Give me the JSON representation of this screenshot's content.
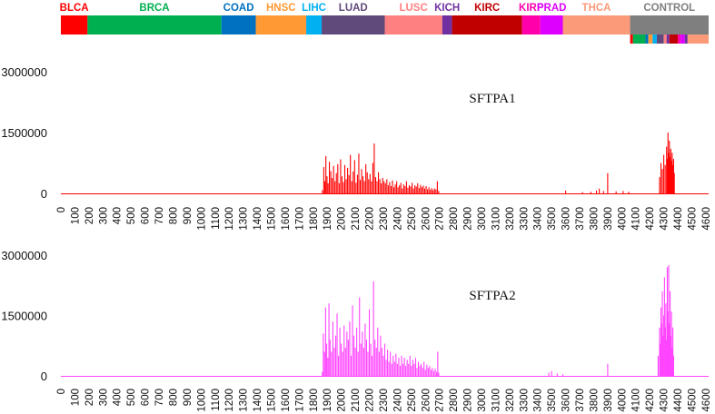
{
  "chart_data": {
    "cancer_bar": {
      "segments": [
        {
          "name": "BLCA",
          "start": 0,
          "end": 190,
          "color": "#ff0000"
        },
        {
          "name": "BRCA",
          "start": 190,
          "end": 1145,
          "color": "#00b050"
        },
        {
          "name": "COAD",
          "start": 1145,
          "end": 1390,
          "color": "#0070c0"
        },
        {
          "name": "HNSC",
          "start": 1390,
          "end": 1750,
          "color": "#ff9933"
        },
        {
          "name": "LIHC",
          "start": 1750,
          "end": 1860,
          "color": "#00b0f0"
        },
        {
          "name": "LUAD",
          "start": 1860,
          "end": 2310,
          "color": "#604a7b"
        },
        {
          "name": "LUSC",
          "start": 2310,
          "end": 2720,
          "color": "#ff8080"
        },
        {
          "name": "KICH",
          "start": 2720,
          "end": 2790,
          "color": "#7030a0"
        },
        {
          "name": "KIRC",
          "start": 2790,
          "end": 3290,
          "color": "#c00000"
        },
        {
          "name": "KIRP",
          "start": 3290,
          "end": 3420,
          "color": "#ff00aa"
        },
        {
          "name": "PRAD",
          "start": 3420,
          "end": 3580,
          "color": "#dd00ff"
        },
        {
          "name": "THCA",
          "start": 3580,
          "end": 4060,
          "color": "#fa9a78"
        },
        {
          "name": "CONTROL",
          "start": 4060,
          "end": 4620,
          "color": "#7f7f7f"
        }
      ],
      "control_subsegments": [
        {
          "start": 4060,
          "end": 4080,
          "color": "#ff0000"
        },
        {
          "start": 4080,
          "end": 4170,
          "color": "#00b050"
        },
        {
          "start": 4170,
          "end": 4190,
          "color": "#0070c0"
        },
        {
          "start": 4190,
          "end": 4220,
          "color": "#ff9933"
        },
        {
          "start": 4220,
          "end": 4250,
          "color": "#00b0f0"
        },
        {
          "start": 4250,
          "end": 4300,
          "color": "#604a7b"
        },
        {
          "start": 4300,
          "end": 4320,
          "color": "#ff8080"
        },
        {
          "start": 4320,
          "end": 4340,
          "color": "#7030a0"
        },
        {
          "start": 4340,
          "end": 4400,
          "color": "#c00000"
        },
        {
          "start": 4400,
          "end": 4420,
          "color": "#ff00aa"
        },
        {
          "start": 4420,
          "end": 4450,
          "color": "#dd00ff"
        },
        {
          "start": 4450,
          "end": 4470,
          "color": "#7030a0"
        },
        {
          "start": 4470,
          "end": 4620,
          "color": "#fa9a78"
        }
      ]
    },
    "panels": [
      {
        "type": "bar",
        "title": "SFTPA1",
        "color": "#ff0000",
        "ylim": [
          0,
          3000000
        ],
        "yticks": [
          "3000000",
          "1500000",
          "0"
        ],
        "ytick_values": [
          3000000,
          1500000,
          0
        ],
        "xlim": [
          0,
          4620
        ],
        "xticks": [
          0,
          100,
          200,
          300,
          400,
          500,
          600,
          700,
          800,
          900,
          1000,
          1100,
          1200,
          1300,
          1400,
          1500,
          1600,
          1700,
          1800,
          1900,
          2000,
          2100,
          2200,
          2300,
          2400,
          2500,
          2600,
          2700,
          2800,
          2900,
          3000,
          3100,
          3200,
          3300,
          3400,
          3500,
          3600,
          3700,
          3800,
          3900,
          4000,
          4100,
          4200,
          4300,
          4400,
          4500,
          4600
        ],
        "spikes": [
          [
            1865,
            80000
          ],
          [
            1875,
            650000
          ],
          [
            1883,
            300000
          ],
          [
            1890,
            920000
          ],
          [
            1898,
            420000
          ],
          [
            1906,
            250000
          ],
          [
            1915,
            780000
          ],
          [
            1925,
            550000
          ],
          [
            1935,
            380000
          ],
          [
            1945,
            680000
          ],
          [
            1955,
            300000
          ],
          [
            1965,
            500000
          ],
          [
            1975,
            720000
          ],
          [
            1985,
            250000
          ],
          [
            1995,
            840000
          ],
          [
            2005,
            420000
          ],
          [
            2015,
            280000
          ],
          [
            2025,
            700000
          ],
          [
            2035,
            350000
          ],
          [
            2045,
            630000
          ],
          [
            2055,
            450000
          ],
          [
            2065,
            950000
          ],
          [
            2075,
            300000
          ],
          [
            2085,
            540000
          ],
          [
            2095,
            820000
          ],
          [
            2105,
            260000
          ],
          [
            2115,
            460000
          ],
          [
            2125,
            980000
          ],
          [
            2135,
            330000
          ],
          [
            2145,
            600000
          ],
          [
            2155,
            420000
          ],
          [
            2165,
            300000
          ],
          [
            2175,
            720000
          ],
          [
            2185,
            520000
          ],
          [
            2195,
            350000
          ],
          [
            2205,
            480000
          ],
          [
            2215,
            300000
          ],
          [
            2225,
            750000
          ],
          [
            2235,
            1230000
          ],
          [
            2245,
            400000
          ],
          [
            2255,
            300000
          ],
          [
            2265,
            520000
          ],
          [
            2275,
            350000
          ],
          [
            2285,
            250000
          ],
          [
            2295,
            380000
          ],
          [
            2305,
            300000
          ],
          [
            2315,
            250000
          ],
          [
            2325,
            350000
          ],
          [
            2335,
            200000
          ],
          [
            2345,
            280000
          ],
          [
            2355,
            180000
          ],
          [
            2365,
            320000
          ],
          [
            2375,
            150000
          ],
          [
            2385,
            220000
          ],
          [
            2395,
            300000
          ],
          [
            2405,
            150000
          ],
          [
            2415,
            200000
          ],
          [
            2425,
            260000
          ],
          [
            2435,
            120000
          ],
          [
            2445,
            220000
          ],
          [
            2455,
            180000
          ],
          [
            2465,
            300000
          ],
          [
            2475,
            140000
          ],
          [
            2485,
            200000
          ],
          [
            2495,
            170000
          ],
          [
            2505,
            260000
          ],
          [
            2515,
            120000
          ],
          [
            2525,
            200000
          ],
          [
            2535,
            170000
          ],
          [
            2545,
            250000
          ],
          [
            2555,
            130000
          ],
          [
            2565,
            210000
          ],
          [
            2575,
            150000
          ],
          [
            2585,
            190000
          ],
          [
            2595,
            120000
          ],
          [
            2605,
            180000
          ],
          [
            2615,
            100000
          ],
          [
            2625,
            150000
          ],
          [
            2635,
            90000
          ],
          [
            2645,
            130000
          ],
          [
            2655,
            80000
          ],
          [
            2665,
            120000
          ],
          [
            2675,
            100000
          ],
          [
            2685,
            300000
          ],
          [
            2695,
            60000
          ],
          [
            3600,
            70000
          ],
          [
            3720,
            30000
          ],
          [
            3780,
            40000
          ],
          [
            3820,
            70000
          ],
          [
            3840,
            120000
          ],
          [
            3870,
            60000
          ],
          [
            3900,
            500000
          ],
          [
            3960,
            50000
          ],
          [
            4010,
            60000
          ],
          [
            4050,
            40000
          ],
          [
            4270,
            400000
          ],
          [
            4280,
            750000
          ],
          [
            4290,
            600000
          ],
          [
            4300,
            950000
          ],
          [
            4310,
            700000
          ],
          [
            4320,
            1150000
          ],
          [
            4325,
            850000
          ],
          [
            4330,
            1500000
          ],
          [
            4335,
            1000000
          ],
          [
            4340,
            1300000
          ],
          [
            4345,
            900000
          ],
          [
            4350,
            1100000
          ],
          [
            4355,
            800000
          ],
          [
            4360,
            1000000
          ],
          [
            4365,
            700000
          ],
          [
            4370,
            850000
          ],
          [
            4375,
            500000
          ]
        ]
      },
      {
        "type": "bar",
        "title": "SFTPA2",
        "color": "#ff44ff",
        "ylim": [
          0,
          3000000
        ],
        "yticks": [
          "3000000",
          "1500000",
          "0"
        ],
        "ytick_values": [
          3000000,
          1500000,
          0
        ],
        "xlim": [
          0,
          4620
        ],
        "xticks": [
          0,
          100,
          200,
          300,
          400,
          500,
          600,
          700,
          800,
          900,
          1000,
          1100,
          1200,
          1300,
          1400,
          1500,
          1600,
          1700,
          1800,
          1900,
          2000,
          2100,
          2200,
          2300,
          2400,
          2500,
          2600,
          2700,
          2800,
          2900,
          3000,
          3100,
          3200,
          3300,
          3400,
          3500,
          3600,
          3700,
          3800,
          3900,
          4000,
          4100,
          4200,
          4300,
          4400,
          4500,
          4600
        ],
        "spikes": [
          [
            1865,
            100000
          ],
          [
            1872,
            1050000
          ],
          [
            1880,
            600000
          ],
          [
            1888,
            1700000
          ],
          [
            1896,
            800000
          ],
          [
            1904,
            450000
          ],
          [
            1912,
            1800000
          ],
          [
            1920,
            900000
          ],
          [
            1930,
            600000
          ],
          [
            1940,
            1350000
          ],
          [
            1950,
            700000
          ],
          [
            1960,
            1000000
          ],
          [
            1970,
            1550000
          ],
          [
            1980,
            500000
          ],
          [
            1990,
            1200000
          ],
          [
            2000,
            800000
          ],
          [
            2010,
            600000
          ],
          [
            2020,
            1250000
          ],
          [
            2030,
            700000
          ],
          [
            2040,
            1100000
          ],
          [
            2050,
            900000
          ],
          [
            2060,
            1350000
          ],
          [
            2070,
            500000
          ],
          [
            2080,
            1750000
          ],
          [
            2090,
            1000000
          ],
          [
            2100,
            700000
          ],
          [
            2110,
            1200000
          ],
          [
            2120,
            600000
          ],
          [
            2130,
            1950000
          ],
          [
            2140,
            800000
          ],
          [
            2150,
            1100000
          ],
          [
            2160,
            700000
          ],
          [
            2170,
            1300000
          ],
          [
            2180,
            900000
          ],
          [
            2190,
            600000
          ],
          [
            2200,
            1650000
          ],
          [
            2210,
            800000
          ],
          [
            2220,
            500000
          ],
          [
            2230,
            2350000
          ],
          [
            2240,
            900000
          ],
          [
            2250,
            700000
          ],
          [
            2260,
            1200000
          ],
          [
            2270,
            600000
          ],
          [
            2280,
            1000000
          ],
          [
            2290,
            700000
          ],
          [
            2300,
            500000
          ],
          [
            2310,
            800000
          ],
          [
            2320,
            400000
          ],
          [
            2330,
            650000
          ],
          [
            2340,
            350000
          ],
          [
            2350,
            600000
          ],
          [
            2360,
            300000
          ],
          [
            2370,
            500000
          ],
          [
            2380,
            350000
          ],
          [
            2390,
            550000
          ],
          [
            2400,
            300000
          ],
          [
            2410,
            450000
          ],
          [
            2420,
            250000
          ],
          [
            2430,
            500000
          ],
          [
            2440,
            300000
          ],
          [
            2450,
            450000
          ],
          [
            2460,
            250000
          ],
          [
            2470,
            400000
          ],
          [
            2480,
            300000
          ],
          [
            2490,
            500000
          ],
          [
            2500,
            250000
          ],
          [
            2510,
            400000
          ],
          [
            2520,
            300000
          ],
          [
            2530,
            450000
          ],
          [
            2540,
            200000
          ],
          [
            2550,
            350000
          ],
          [
            2560,
            250000
          ],
          [
            2570,
            300000
          ],
          [
            2580,
            200000
          ],
          [
            2590,
            350000
          ],
          [
            2600,
            150000
          ],
          [
            2610,
            280000
          ],
          [
            2620,
            200000
          ],
          [
            2630,
            250000
          ],
          [
            2640,
            150000
          ],
          [
            2650,
            200000
          ],
          [
            2660,
            120000
          ],
          [
            2670,
            180000
          ],
          [
            2680,
            100000
          ],
          [
            2688,
            600000
          ],
          [
            2695,
            80000
          ],
          [
            3480,
            80000
          ],
          [
            3500,
            120000
          ],
          [
            3540,
            60000
          ],
          [
            3580,
            40000
          ],
          [
            3900,
            300000
          ],
          [
            4260,
            500000
          ],
          [
            4270,
            1200000
          ],
          [
            4275,
            800000
          ],
          [
            4280,
            1700000
          ],
          [
            4285,
            1300000
          ],
          [
            4290,
            2100000
          ],
          [
            4295,
            1000000
          ],
          [
            4300,
            1500000
          ],
          [
            4305,
            2450000
          ],
          [
            4310,
            1200000
          ],
          [
            4315,
            1800000
          ],
          [
            4320,
            900000
          ],
          [
            4325,
            2700000
          ],
          [
            4330,
            1600000
          ],
          [
            4335,
            2750000
          ],
          [
            4340,
            1300000
          ],
          [
            4345,
            2100000
          ],
          [
            4350,
            1000000
          ],
          [
            4355,
            1600000
          ],
          [
            4360,
            700000
          ],
          [
            4365,
            1200000
          ],
          [
            4370,
            500000
          ]
        ]
      }
    ]
  }
}
